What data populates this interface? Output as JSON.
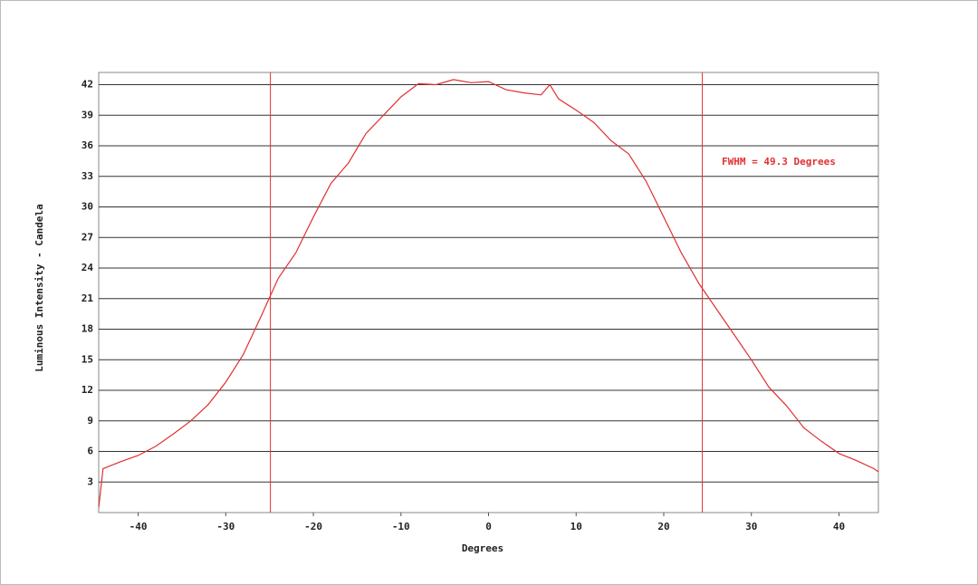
{
  "chart_data": {
    "type": "line",
    "x_label": "Degrees",
    "y_label": "Luminous Intensity - Candela",
    "annotation": "FWHM = 49.3 Degrees",
    "x": [
      -44.5,
      -44,
      -42,
      -40,
      -38,
      -36,
      -34,
      -32,
      -30,
      -28,
      -26,
      -24,
      -22,
      -20,
      -18,
      -16,
      -14,
      -12,
      -10,
      -8,
      -6,
      -4,
      -2,
      0,
      2,
      4,
      6,
      7,
      8,
      10,
      12,
      14,
      16,
      18,
      20,
      22,
      24,
      26,
      28,
      30,
      32,
      34,
      36,
      38,
      40,
      42,
      44,
      44.5
    ],
    "series": [
      {
        "color": "#e03030",
        "values": [
          0.5,
          4.3,
          5.0,
          5.6,
          6.5,
          7.7,
          9.0,
          10.6,
          12.8,
          15.5,
          19.2,
          23.0,
          25.5,
          29.0,
          32.3,
          34.3,
          37.2,
          39.0,
          40.8,
          42.1,
          42.0,
          42.5,
          42.2,
          42.3,
          41.5,
          41.2,
          41.0,
          42.0,
          40.6,
          39.5,
          38.3,
          36.5,
          35.2,
          32.5,
          29.0,
          25.5,
          22.5,
          20.0,
          17.5,
          15.0,
          12.3,
          10.5,
          8.3,
          7.0,
          5.8,
          5.1,
          4.3,
          4.0
        ]
      }
    ],
    "vlines": [
      -24.9,
      24.4
    ],
    "xlim": [
      -44.5,
      44.5
    ],
    "xticks": [
      -40,
      -30,
      -20,
      -10,
      0,
      10,
      20,
      30,
      40
    ],
    "ylim": [
      0,
      43.2
    ],
    "yticks": [
      3,
      6,
      9,
      12,
      15,
      18,
      21,
      24,
      27,
      30,
      33,
      36,
      39,
      42
    ],
    "grid": true
  }
}
